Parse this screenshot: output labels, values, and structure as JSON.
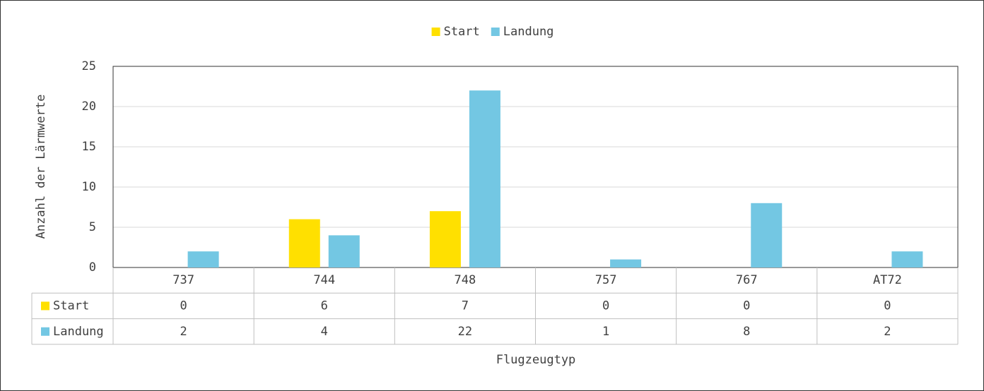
{
  "chart_data": {
    "type": "bar",
    "categories": [
      "737",
      "744",
      "748",
      "757",
      "767",
      "AT72"
    ],
    "series": [
      {
        "name": "Start",
        "color": "#ffe000",
        "values": [
          0,
          6,
          7,
          0,
          0,
          0
        ]
      },
      {
        "name": "Landung",
        "color": "#73c7e3",
        "values": [
          2,
          4,
          22,
          1,
          8,
          2
        ]
      }
    ],
    "ylim": [
      0,
      25
    ],
    "yticks": [
      0,
      5,
      10,
      15,
      20,
      25
    ],
    "grid": true,
    "xlabel": "Flugzeugtyp",
    "ylabel": "Anzahl der Lärmwerte",
    "legend": "top",
    "data_table": true
  }
}
